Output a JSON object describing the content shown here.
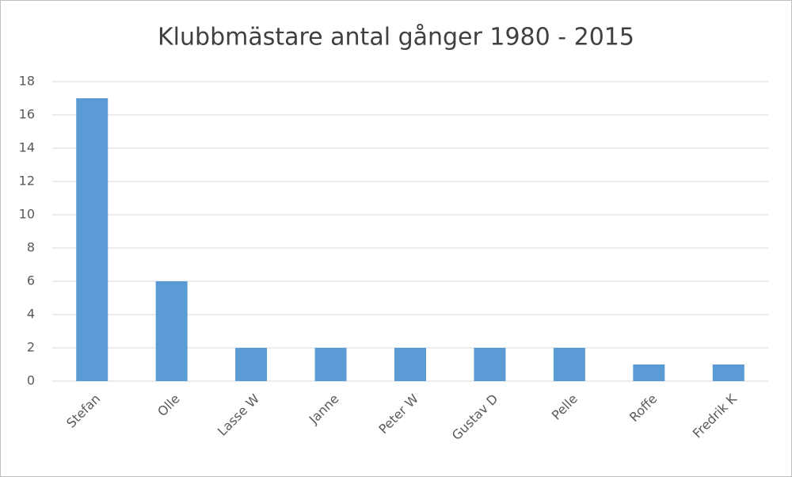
{
  "chart_data": {
    "type": "bar",
    "title": "Klubbmästare antal gånger 1980 - 2015",
    "categories": [
      "Stefan",
      "Olle",
      "Lasse W",
      "Janne",
      "Peter W",
      "Gustav D",
      "Pelle",
      "Roffe",
      "Fredrik K"
    ],
    "values": [
      17,
      6,
      2,
      2,
      2,
      2,
      2,
      1,
      1
    ],
    "color": "#5b9bd5",
    "ylim": [
      0,
      18
    ],
    "yticks": [
      0,
      2,
      4,
      6,
      8,
      10,
      12,
      14,
      16,
      18
    ],
    "grid": true
  }
}
